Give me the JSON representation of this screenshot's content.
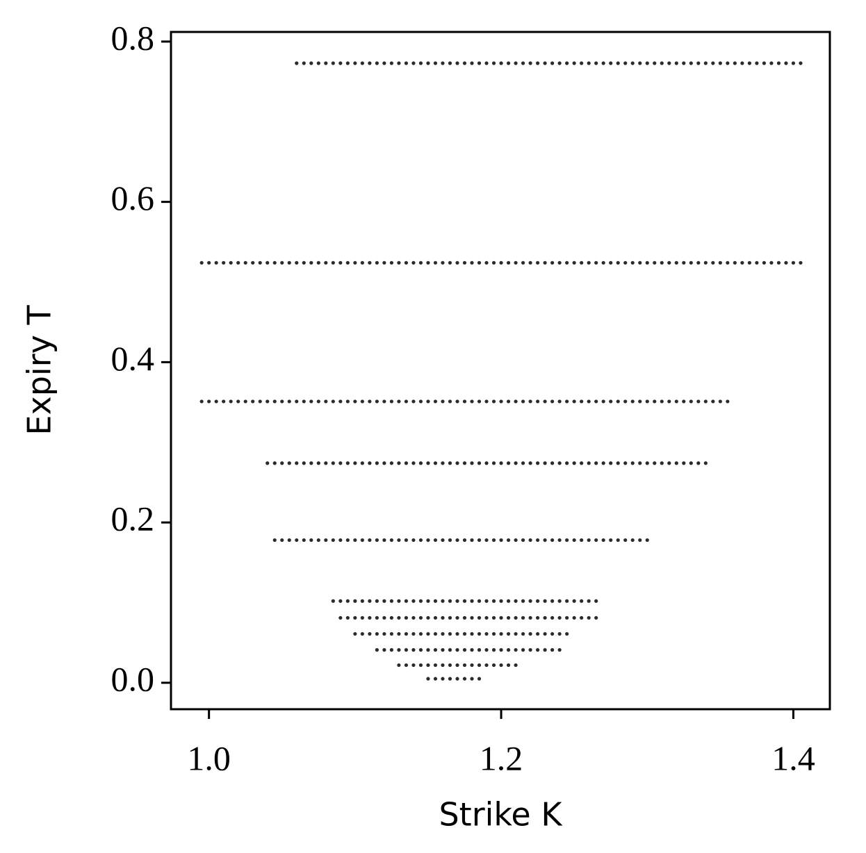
{
  "chart_data": {
    "type": "scatter",
    "xlabel": "Strike K",
    "ylabel": "Expiry T",
    "color": "#2b2b2b",
    "xlim": [
      0.974,
      1.425
    ],
    "ylim": [
      -0.033,
      0.812
    ],
    "xticks": [
      {
        "value": 1.0,
        "label": "1.0"
      },
      1.2,
      {
        "value": 1.4,
        "label": "1.4"
      }
    ],
    "yticks": [
      {
        "value": 0.0,
        "label": "0.0"
      },
      0.2,
      0.4,
      0.6,
      0.8
    ],
    "series": [
      {
        "y": 0.773,
        "x": [
          1.06,
          1.065,
          1.07,
          1.075,
          1.08,
          1.085,
          1.09,
          1.095,
          1.1,
          1.105,
          1.11,
          1.115,
          1.12,
          1.125,
          1.13,
          1.135,
          1.14,
          1.145,
          1.15,
          1.155,
          1.16,
          1.165,
          1.17,
          1.175,
          1.18,
          1.185,
          1.19,
          1.195,
          1.2,
          1.205,
          1.21,
          1.215,
          1.22,
          1.225,
          1.23,
          1.235,
          1.24,
          1.245,
          1.25,
          1.255,
          1.26,
          1.265,
          1.27,
          1.275,
          1.28,
          1.285,
          1.29,
          1.295,
          1.3,
          1.305,
          1.31,
          1.315,
          1.32,
          1.325,
          1.33,
          1.335,
          1.34,
          1.345,
          1.35,
          1.355,
          1.36,
          1.365,
          1.37,
          1.375,
          1.38,
          1.385,
          1.39,
          1.395,
          1.4,
          1.405
        ]
      },
      {
        "y": 0.524,
        "x": [
          0.995,
          1.0,
          1.005,
          1.01,
          1.015,
          1.02,
          1.025,
          1.03,
          1.035,
          1.04,
          1.045,
          1.05,
          1.055,
          1.06,
          1.065,
          1.07,
          1.075,
          1.08,
          1.085,
          1.09,
          1.095,
          1.1,
          1.105,
          1.11,
          1.115,
          1.12,
          1.125,
          1.13,
          1.135,
          1.14,
          1.145,
          1.15,
          1.155,
          1.16,
          1.165,
          1.17,
          1.175,
          1.18,
          1.185,
          1.19,
          1.195,
          1.2,
          1.205,
          1.21,
          1.215,
          1.22,
          1.225,
          1.23,
          1.235,
          1.24,
          1.245,
          1.25,
          1.255,
          1.26,
          1.265,
          1.27,
          1.275,
          1.28,
          1.285,
          1.29,
          1.295,
          1.3,
          1.305,
          1.31,
          1.315,
          1.32,
          1.325,
          1.33,
          1.335,
          1.34,
          1.345,
          1.35,
          1.355,
          1.36,
          1.365,
          1.37,
          1.375,
          1.38,
          1.385,
          1.39,
          1.395,
          1.4,
          1.405
        ]
      },
      {
        "y": 0.351,
        "x": [
          0.995,
          1.0,
          1.005,
          1.01,
          1.015,
          1.02,
          1.025,
          1.03,
          1.035,
          1.04,
          1.045,
          1.05,
          1.055,
          1.06,
          1.065,
          1.07,
          1.075,
          1.08,
          1.085,
          1.09,
          1.095,
          1.1,
          1.105,
          1.11,
          1.115,
          1.12,
          1.125,
          1.13,
          1.135,
          1.14,
          1.145,
          1.15,
          1.155,
          1.16,
          1.165,
          1.17,
          1.175,
          1.18,
          1.185,
          1.19,
          1.195,
          1.2,
          1.205,
          1.21,
          1.215,
          1.22,
          1.225,
          1.23,
          1.235,
          1.24,
          1.245,
          1.25,
          1.255,
          1.26,
          1.265,
          1.27,
          1.275,
          1.28,
          1.285,
          1.29,
          1.295,
          1.3,
          1.305,
          1.31,
          1.315,
          1.32,
          1.325,
          1.33,
          1.335,
          1.34,
          1.345,
          1.35,
          1.355
        ]
      },
      {
        "y": 0.274,
        "x": [
          1.04,
          1.045,
          1.05,
          1.055,
          1.06,
          1.065,
          1.07,
          1.075,
          1.08,
          1.085,
          1.09,
          1.095,
          1.1,
          1.105,
          1.11,
          1.115,
          1.12,
          1.125,
          1.13,
          1.135,
          1.14,
          1.145,
          1.15,
          1.155,
          1.16,
          1.165,
          1.17,
          1.175,
          1.18,
          1.185,
          1.19,
          1.195,
          1.2,
          1.205,
          1.21,
          1.215,
          1.22,
          1.225,
          1.23,
          1.235,
          1.24,
          1.245,
          1.25,
          1.255,
          1.26,
          1.265,
          1.27,
          1.275,
          1.28,
          1.285,
          1.29,
          1.295,
          1.3,
          1.305,
          1.31,
          1.315,
          1.32,
          1.325,
          1.33,
          1.335,
          1.34
        ]
      },
      {
        "y": 0.178,
        "x": [
          1.045,
          1.05,
          1.055,
          1.06,
          1.065,
          1.07,
          1.075,
          1.08,
          1.085,
          1.09,
          1.095,
          1.1,
          1.105,
          1.11,
          1.115,
          1.12,
          1.125,
          1.13,
          1.135,
          1.14,
          1.145,
          1.15,
          1.155,
          1.16,
          1.165,
          1.17,
          1.175,
          1.18,
          1.185,
          1.19,
          1.195,
          1.2,
          1.205,
          1.21,
          1.215,
          1.22,
          1.225,
          1.23,
          1.235,
          1.24,
          1.245,
          1.25,
          1.255,
          1.26,
          1.265,
          1.27,
          1.275,
          1.28,
          1.285,
          1.29,
          1.295,
          1.3
        ]
      },
      {
        "y": 0.102,
        "x": [
          1.085,
          1.09,
          1.095,
          1.1,
          1.105,
          1.11,
          1.115,
          1.12,
          1.125,
          1.13,
          1.135,
          1.14,
          1.145,
          1.15,
          1.155,
          1.16,
          1.165,
          1.17,
          1.175,
          1.18,
          1.185,
          1.19,
          1.195,
          1.2,
          1.205,
          1.21,
          1.215,
          1.22,
          1.225,
          1.23,
          1.235,
          1.24,
          1.245,
          1.25,
          1.255,
          1.26,
          1.265
        ]
      },
      {
        "y": 0.081,
        "x": [
          1.09,
          1.095,
          1.1,
          1.105,
          1.11,
          1.115,
          1.12,
          1.125,
          1.13,
          1.135,
          1.14,
          1.145,
          1.15,
          1.155,
          1.16,
          1.165,
          1.17,
          1.175,
          1.18,
          1.185,
          1.19,
          1.195,
          1.2,
          1.205,
          1.21,
          1.215,
          1.22,
          1.225,
          1.23,
          1.235,
          1.24,
          1.245,
          1.25,
          1.255,
          1.26,
          1.265
        ]
      },
      {
        "y": 0.061,
        "x": [
          1.1,
          1.105,
          1.11,
          1.115,
          1.12,
          1.125,
          1.13,
          1.135,
          1.14,
          1.145,
          1.15,
          1.155,
          1.16,
          1.165,
          1.17,
          1.175,
          1.18,
          1.185,
          1.19,
          1.195,
          1.2,
          1.205,
          1.21,
          1.215,
          1.22,
          1.225,
          1.23,
          1.235,
          1.24,
          1.245
        ]
      },
      {
        "y": 0.041,
        "x": [
          1.115,
          1.12,
          1.125,
          1.13,
          1.135,
          1.14,
          1.145,
          1.15,
          1.155,
          1.16,
          1.165,
          1.17,
          1.175,
          1.18,
          1.185,
          1.19,
          1.195,
          1.2,
          1.205,
          1.21,
          1.215,
          1.22,
          1.225,
          1.23,
          1.235,
          1.24
        ]
      },
      {
        "y": 0.022,
        "x": [
          1.13,
          1.135,
          1.14,
          1.145,
          1.15,
          1.155,
          1.16,
          1.165,
          1.17,
          1.175,
          1.18,
          1.185,
          1.19,
          1.195,
          1.2,
          1.205,
          1.21
        ]
      },
      {
        "y": 0.005,
        "x": [
          1.15,
          1.155,
          1.16,
          1.165,
          1.17,
          1.175,
          1.18,
          1.185
        ]
      }
    ]
  }
}
